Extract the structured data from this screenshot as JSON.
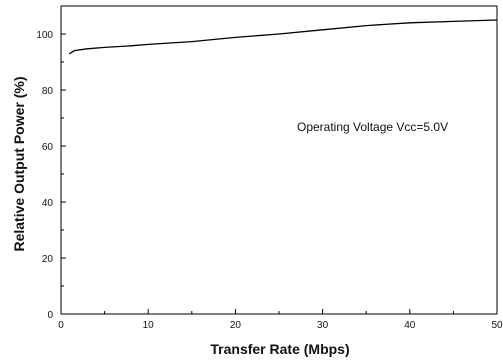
{
  "chart_data": {
    "type": "line",
    "title": "",
    "xlabel": "Transfer Rate (Mbps)",
    "ylabel": "Relative Output Power (%)",
    "xlim": [
      0,
      50
    ],
    "ylim": [
      0,
      110
    ],
    "x_ticks": [
      0,
      10,
      20,
      30,
      40,
      50
    ],
    "y_ticks": [
      0,
      20,
      40,
      60,
      80,
      100
    ],
    "grid": false,
    "legend": "none",
    "annotation": "Operating Voltage Vcc=5.0V",
    "series": [
      {
        "x": [
          1,
          1.5,
          2,
          3,
          5,
          8,
          10,
          15,
          20,
          25,
          30,
          35,
          40,
          45,
          50
        ],
        "y": [
          93,
          94,
          94.3,
          94.7,
          95.2,
          95.8,
          96.3,
          97.3,
          98.8,
          100,
          101.5,
          103,
          104,
          104.5,
          105
        ]
      }
    ],
    "colors": {
      "line": "#000000",
      "axis": "#000000",
      "background": "#ffffff"
    }
  }
}
